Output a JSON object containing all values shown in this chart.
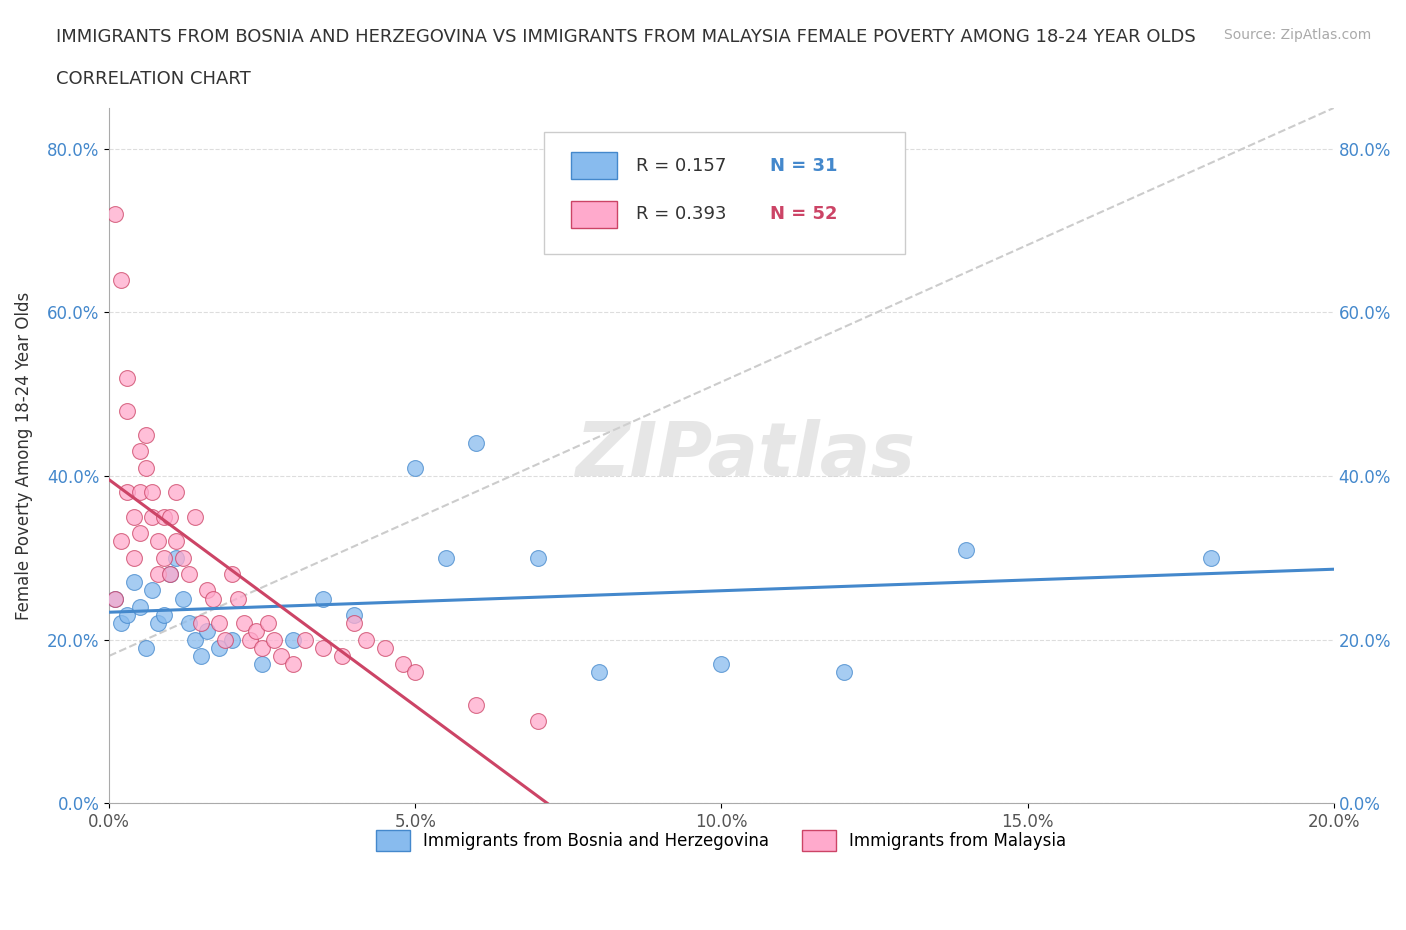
{
  "title_line1": "IMMIGRANTS FROM BOSNIA AND HERZEGOVINA VS IMMIGRANTS FROM MALAYSIA FEMALE POVERTY AMONG 18-24 YEAR OLDS",
  "title_line2": "CORRELATION CHART",
  "source": "Source: ZipAtlas.com",
  "ylabel": "Female Poverty Among 18-24 Year Olds",
  "xlabel": "",
  "xlim": [
    0,
    0.2
  ],
  "ylim": [
    0,
    0.85
  ],
  "xticks": [
    0.0,
    0.05,
    0.1,
    0.15,
    0.2
  ],
  "yticks": [
    0.0,
    0.2,
    0.4,
    0.6,
    0.8
  ],
  "r_bosnia": 0.157,
  "n_bosnia": 31,
  "r_malaysia": 0.393,
  "n_malaysia": 52,
  "color_bosnia": "#88bbee",
  "color_malaysia": "#ffaacc",
  "color_trendline_bosnia": "#4488cc",
  "color_trendline_malaysia": "#cc4466",
  "watermark": "ZIPatlas",
  "legend_label_bosnia": "Immigrants from Bosnia and Herzegovina",
  "legend_label_malaysia": "Immigrants from Malaysia",
  "bosnia_x": [
    0.001,
    0.002,
    0.003,
    0.004,
    0.005,
    0.006,
    0.007,
    0.008,
    0.009,
    0.01,
    0.011,
    0.012,
    0.013,
    0.014,
    0.015,
    0.016,
    0.018,
    0.02,
    0.025,
    0.03,
    0.035,
    0.04,
    0.05,
    0.055,
    0.06,
    0.07,
    0.08,
    0.1,
    0.12,
    0.14,
    0.18
  ],
  "bosnia_y": [
    0.25,
    0.22,
    0.23,
    0.27,
    0.24,
    0.19,
    0.26,
    0.22,
    0.23,
    0.28,
    0.3,
    0.25,
    0.22,
    0.2,
    0.18,
    0.21,
    0.19,
    0.2,
    0.17,
    0.2,
    0.25,
    0.23,
    0.41,
    0.3,
    0.44,
    0.3,
    0.16,
    0.17,
    0.16,
    0.31,
    0.3
  ],
  "malaysia_x": [
    0.001,
    0.001,
    0.002,
    0.002,
    0.003,
    0.003,
    0.003,
    0.004,
    0.004,
    0.005,
    0.005,
    0.005,
    0.006,
    0.006,
    0.007,
    0.007,
    0.008,
    0.008,
    0.009,
    0.009,
    0.01,
    0.01,
    0.011,
    0.011,
    0.012,
    0.013,
    0.014,
    0.015,
    0.016,
    0.017,
    0.018,
    0.019,
    0.02,
    0.021,
    0.022,
    0.023,
    0.024,
    0.025,
    0.026,
    0.027,
    0.028,
    0.03,
    0.032,
    0.035,
    0.038,
    0.04,
    0.042,
    0.045,
    0.048,
    0.05,
    0.06,
    0.07
  ],
  "malaysia_y": [
    0.72,
    0.25,
    0.64,
    0.32,
    0.52,
    0.48,
    0.38,
    0.35,
    0.3,
    0.43,
    0.38,
    0.33,
    0.45,
    0.41,
    0.38,
    0.35,
    0.32,
    0.28,
    0.35,
    0.3,
    0.35,
    0.28,
    0.38,
    0.32,
    0.3,
    0.28,
    0.35,
    0.22,
    0.26,
    0.25,
    0.22,
    0.2,
    0.28,
    0.25,
    0.22,
    0.2,
    0.21,
    0.19,
    0.22,
    0.2,
    0.18,
    0.17,
    0.2,
    0.19,
    0.18,
    0.22,
    0.2,
    0.19,
    0.17,
    0.16,
    0.12,
    0.1
  ],
  "dashed_line_x": [
    0.0,
    0.2
  ],
  "dashed_line_y": [
    0.18,
    0.85
  ]
}
